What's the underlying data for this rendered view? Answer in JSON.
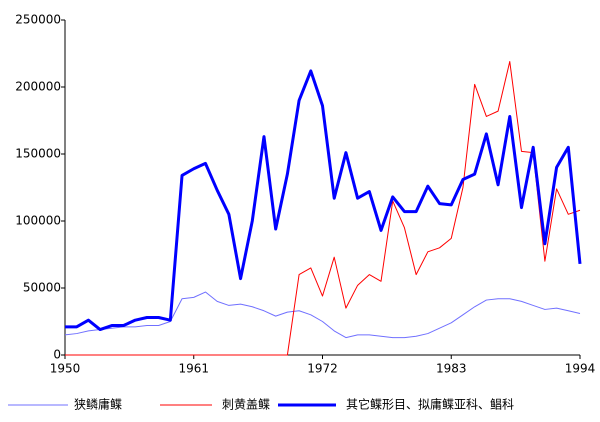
{
  "chart_data": {
    "type": "line",
    "x": [
      1950,
      1951,
      1952,
      1953,
      1954,
      1955,
      1956,
      1957,
      1958,
      1959,
      1960,
      1961,
      1962,
      1963,
      1964,
      1965,
      1966,
      1967,
      1968,
      1969,
      1970,
      1971,
      1972,
      1973,
      1974,
      1975,
      1976,
      1977,
      1978,
      1979,
      1980,
      1981,
      1982,
      1983,
      1984,
      1985,
      1986,
      1987,
      1988,
      1989,
      1990,
      1991,
      1992,
      1993,
      1994
    ],
    "xlim": [
      1950,
      1994
    ],
    "xticks": [
      1950,
      1961,
      1972,
      1983,
      1994
    ],
    "ylim": [
      0,
      250000
    ],
    "yticks": [
      0,
      50000,
      100000,
      150000,
      200000,
      250000
    ],
    "grid": false,
    "legend": "bottom",
    "series": [
      {
        "name": "狭鳞庸鲽",
        "color": "#7070ff",
        "line_width": 1,
        "values": [
          15000,
          16000,
          18000,
          19000,
          20000,
          21000,
          21000,
          22000,
          22000,
          25000,
          42000,
          43000,
          47000,
          40000,
          37000,
          38000,
          36000,
          33000,
          29000,
          32000,
          33000,
          30000,
          25000,
          18000,
          13000,
          15000,
          15000,
          14000,
          13000,
          13000,
          14000,
          16000,
          20000,
          24000,
          30000,
          36000,
          41000,
          42000,
          42000,
          40000,
          37000,
          34000,
          35000,
          33000,
          31000
        ]
      },
      {
        "name": "刺黄盖鲽",
        "color": "#ff0000",
        "line_width": 1,
        "values": [
          0,
          0,
          0,
          0,
          0,
          0,
          0,
          0,
          0,
          0,
          0,
          0,
          0,
          0,
          0,
          0,
          0,
          0,
          0,
          0,
          60000,
          65000,
          44000,
          73000,
          35000,
          52000,
          60000,
          55000,
          115000,
          95000,
          60000,
          77000,
          80000,
          87000,
          125000,
          202000,
          178000,
          182000,
          219000,
          152000,
          151000,
          70000,
          124000,
          105000,
          108000
        ]
      },
      {
        "name": "其它鲽形目、拟庸鲽亚科、鲳科",
        "color": "#0000ff",
        "line_width": 3,
        "values": [
          21000,
          21000,
          26000,
          19000,
          22000,
          22000,
          26000,
          28000,
          28000,
          26000,
          134000,
          139000,
          143000,
          123000,
          105000,
          57000,
          100000,
          163000,
          94000,
          135000,
          190000,
          212000,
          186000,
          117000,
          151000,
          117000,
          122000,
          93000,
          118000,
          107000,
          107000,
          126000,
          113000,
          112000,
          131000,
          135000,
          165000,
          127000,
          178000,
          110000,
          155000,
          83000,
          140000,
          155000,
          68000
        ]
      }
    ]
  }
}
